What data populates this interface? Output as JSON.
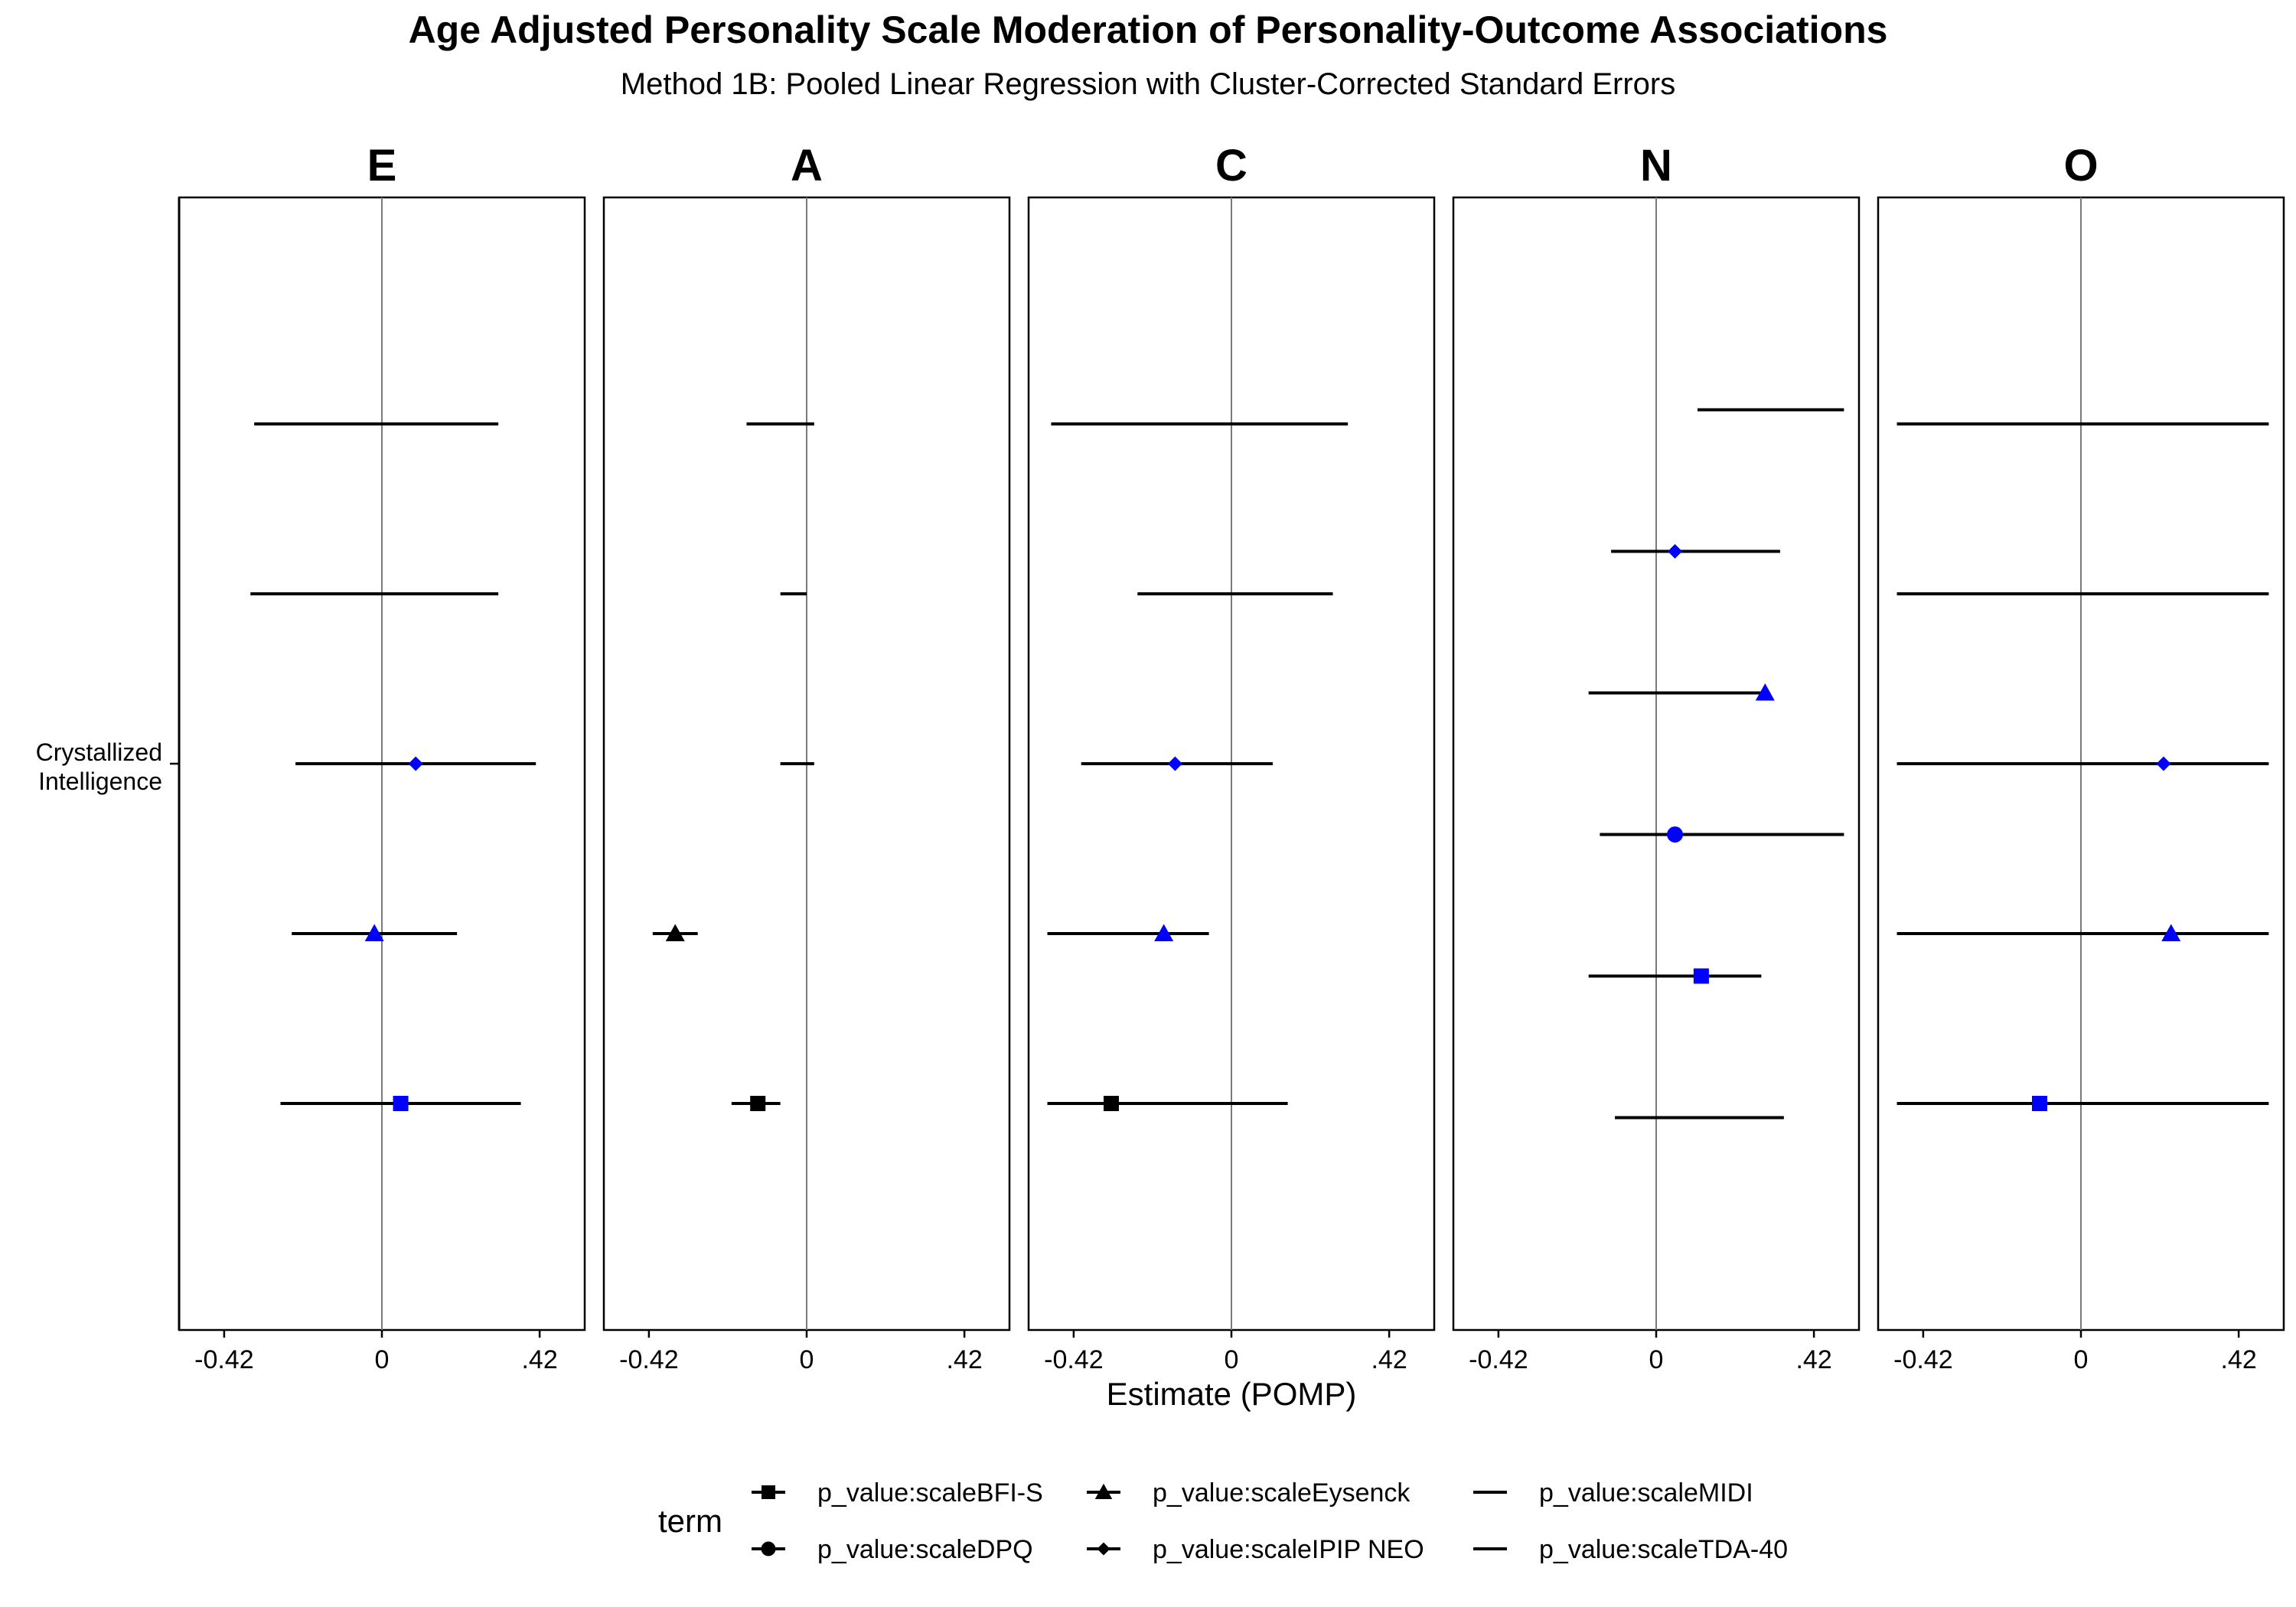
{
  "chart_data": {
    "type": "forest",
    "title": "Age Adjusted Personality Scale Moderation of Personality-Outcome Associations",
    "subtitle": "Method 1B: Pooled Linear Regression with Cluster-Corrected Standard Errors",
    "xlabel": "Estimate (POMP)",
    "y_category": [
      "Crystallized",
      "Intelligence"
    ],
    "x_ticks": [
      -0.42,
      0,
      0.42
    ],
    "x_tick_labels": [
      "-0.42",
      "0",
      ".42"
    ],
    "xlim": [
      -0.54,
      0.54
    ],
    "grid": false,
    "legend": {
      "title": "term",
      "position": "bottom",
      "entries": [
        {
          "label": "p_value:scaleBFI-S",
          "shape": "square"
        },
        {
          "label": "p_value:scaleDPQ",
          "shape": "circle"
        },
        {
          "label": "p_value:scaleEysenck",
          "shape": "triangle"
        },
        {
          "label": "p_value:scaleIPIP NEO",
          "shape": "diamond"
        },
        {
          "label": "p_value:scaleMIDI",
          "shape": "none"
        },
        {
          "label": "p_value:scaleTDA-40",
          "shape": "none"
        }
      ]
    },
    "significant_color": "#0000ff",
    "nonsignificant_color": "#000000",
    "panels": [
      {
        "name": "E",
        "rows": [
          {
            "term": "p_value:scaleBFI-S",
            "estimate": 0.05,
            "low": -0.27,
            "high": 0.37,
            "significant": true
          },
          {
            "term": "p_value:scaleEysenck",
            "estimate": -0.02,
            "low": -0.24,
            "high": 0.2,
            "significant": true
          },
          {
            "term": "p_value:scaleIPIP NEO",
            "estimate": 0.09,
            "low": -0.23,
            "high": 0.41,
            "significant": true
          },
          {
            "term": "p_value:scaleMIDI",
            "estimate": null,
            "low": -0.35,
            "high": 0.31,
            "significant": false
          },
          {
            "term": "p_value:scaleTDA-40",
            "estimate": null,
            "low": -0.34,
            "high": 0.31,
            "significant": false
          }
        ]
      },
      {
        "name": "A",
        "rows": [
          {
            "term": "p_value:scaleBFI-S",
            "estimate": -0.13,
            "low": -0.2,
            "high": -0.07,
            "significant": false
          },
          {
            "term": "p_value:scaleEysenck",
            "estimate": -0.35,
            "low": -0.41,
            "high": -0.29,
            "significant": false
          },
          {
            "term": "p_value:scaleIPIP NEO",
            "estimate": null,
            "low": -0.07,
            "high": 0.02,
            "significant": false
          },
          {
            "term": "p_value:scaleMIDI",
            "estimate": -0.02,
            "low": -0.07,
            "high": 0.0,
            "significant": true
          },
          {
            "term": "p_value:scaleTDA-40",
            "estimate": null,
            "low": -0.16,
            "high": 0.02,
            "significant": false
          }
        ]
      },
      {
        "name": "C",
        "rows": [
          {
            "term": "p_value:scaleBFI-S",
            "estimate": -0.32,
            "low": -0.49,
            "high": 0.15,
            "significant": false
          },
          {
            "term": "p_value:scaleEysenck",
            "estimate": -0.18,
            "low": -0.49,
            "high": -0.06,
            "significant": true
          },
          {
            "term": "p_value:scaleIPIP NEO",
            "estimate": -0.15,
            "low": -0.4,
            "high": 0.11,
            "significant": true
          },
          {
            "term": "p_value:scaleMIDI",
            "estimate": null,
            "low": -0.25,
            "high": 0.27,
            "significant": false
          },
          {
            "term": "p_value:scaleTDA-40",
            "estimate": null,
            "low": -0.48,
            "high": 0.31,
            "significant": false
          }
        ]
      },
      {
        "name": "N",
        "rows": [
          {
            "term": "p_value:scaleTDA-40",
            "estimate": null,
            "low": -0.11,
            "high": 0.34,
            "significant": false
          },
          {
            "term": "p_value:scaleBFI-S",
            "estimate": 0.12,
            "low": -0.18,
            "high": 0.28,
            "significant": true
          },
          {
            "term": "p_value:scaleDPQ",
            "estimate": 0.05,
            "low": -0.15,
            "high": 0.5,
            "significant": true
          },
          {
            "term": "p_value:scaleEysenck",
            "estimate": 0.29,
            "low": -0.18,
            "high": 0.29,
            "significant": true
          },
          {
            "term": "p_value:scaleIPIP NEO",
            "estimate": 0.05,
            "low": -0.12,
            "high": 0.33,
            "significant": true
          },
          {
            "term": "p_value:scaleMIDI",
            "estimate": null,
            "low": 0.11,
            "high": 0.5,
            "significant": false
          }
        ]
      },
      {
        "name": "O",
        "rows": [
          {
            "term": "p_value:scaleBFI-S",
            "estimate": -0.11,
            "low": -0.49,
            "high": 0.5,
            "significant": true
          },
          {
            "term": "p_value:scaleEysenck",
            "estimate": 0.24,
            "low": -0.49,
            "high": 0.5,
            "significant": true
          },
          {
            "term": "p_value:scaleIPIP NEO",
            "estimate": 0.22,
            "low": -0.49,
            "high": 0.5,
            "significant": true
          },
          {
            "term": "p_value:scaleMIDI",
            "estimate": null,
            "low": -0.49,
            "high": 0.5,
            "significant": false
          },
          {
            "term": "p_value:scaleTDA-40",
            "estimate": null,
            "low": -0.49,
            "high": 0.5,
            "significant": false
          }
        ]
      }
    ]
  }
}
